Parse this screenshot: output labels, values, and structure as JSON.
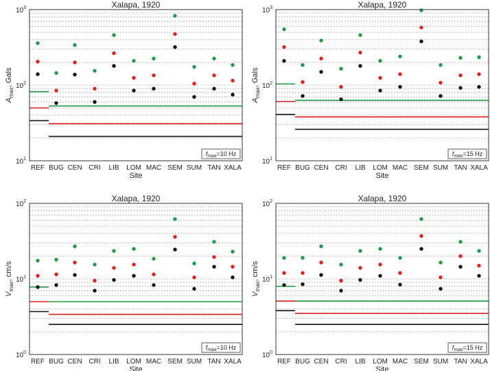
{
  "chart_data": [
    {
      "type": "scatter",
      "title": "Xalapa, 1920",
      "ylabel": "A_max, Gals",
      "ylabel_base": "A",
      "ylabel_sub": "max",
      "ylabel_rest": ", Gals",
      "xlabel": "Site",
      "yscale": "log",
      "ylim": [
        10,
        1000
      ],
      "y_ticks": [
        {
          "value": 10,
          "base": "10",
          "exp": "1"
        },
        {
          "value": 100,
          "base": "10",
          "exp": "2"
        },
        {
          "value": 1000,
          "base": "10",
          "exp": "3"
        }
      ],
      "grid": true,
      "categories": [
        "REF",
        "BUG",
        "CEN",
        "CRI",
        "LIB",
        "LOM",
        "MAC",
        "SEM",
        "SUM",
        "TAN",
        "XALA"
      ],
      "annotation": {
        "base": "f",
        "sub": "max",
        "rest": "=10 Hz"
      },
      "series": [
        {
          "name": "green",
          "color": "#1e9a48",
          "values": [
            360,
            145,
            340,
            155,
            460,
            210,
            225,
            830,
            175,
            225,
            185
          ]
        },
        {
          "name": "red",
          "color": "#e0201e",
          "values": [
            205,
            85,
            200,
            90,
            265,
            125,
            135,
            475,
            105,
            135,
            115
          ]
        },
        {
          "name": "black",
          "color": "#111111",
          "values": [
            140,
            58,
            138,
            60,
            180,
            85,
            90,
            320,
            70,
            90,
            75
          ]
        }
      ],
      "ref_lines": [
        {
          "color": "#1e9a48",
          "ref_value": 82,
          "sites_value": 53
        },
        {
          "color": "#e0201e",
          "ref_value": 50,
          "sites_value": 31
        },
        {
          "color": "#111111",
          "ref_value": 34,
          "sites_value": 21
        }
      ]
    },
    {
      "type": "scatter",
      "title": "Xalapa, 1920",
      "ylabel": "A_max, Gals",
      "ylabel_base": "A",
      "ylabel_sub": "max",
      "ylabel_rest": ", Gals",
      "xlabel": "Site",
      "yscale": "log",
      "ylim": [
        10,
        1000
      ],
      "y_ticks": [
        {
          "value": 10,
          "base": "10",
          "exp": "1"
        },
        {
          "value": 100,
          "base": "10",
          "exp": "2"
        },
        {
          "value": 1000,
          "base": "10",
          "exp": "3"
        }
      ],
      "grid": true,
      "categories": [
        "REF",
        "BUG",
        "CEN",
        "CRI",
        "LIB",
        "LOM",
        "MAC",
        "SEM",
        "SUM",
        "TAN",
        "XALA"
      ],
      "annotation": {
        "base": "f",
        "sub": "max",
        "rest": "=15 Hz"
      },
      "series": [
        {
          "name": "green",
          "color": "#1e9a48",
          "values": [
            550,
            185,
            390,
            165,
            460,
            210,
            240,
            980,
            185,
            230,
            235
          ]
        },
        {
          "name": "red",
          "color": "#e0201e",
          "values": [
            320,
            110,
            225,
            95,
            270,
            125,
            140,
            580,
            108,
            135,
            140
          ]
        },
        {
          "name": "black",
          "color": "#111111",
          "values": [
            210,
            72,
            150,
            65,
            180,
            85,
            95,
            380,
            72,
            92,
            95
          ]
        }
      ],
      "ref_lines": [
        {
          "color": "#1e9a48",
          "ref_value": 104,
          "sites_value": 63
        },
        {
          "color": "#e0201e",
          "ref_value": 61,
          "sites_value": 38
        },
        {
          "color": "#111111",
          "ref_value": 41,
          "sites_value": 26
        }
      ]
    },
    {
      "type": "scatter",
      "title": "Xalapa, 1920",
      "ylabel": "V_max, cm/s",
      "ylabel_base": "V",
      "ylabel_sub": "max",
      "ylabel_rest": ", cm/s",
      "xlabel": "Site",
      "yscale": "log",
      "ylim": [
        1,
        100
      ],
      "y_ticks": [
        {
          "value": 1,
          "base": "10",
          "exp": "0"
        },
        {
          "value": 10,
          "base": "10",
          "exp": "1"
        },
        {
          "value": 100,
          "base": "10",
          "exp": "2"
        }
      ],
      "grid": true,
      "categories": [
        "REF",
        "BUG",
        "CEN",
        "CRI",
        "LIB",
        "LOM",
        "MAC",
        "SEM",
        "SUM",
        "TAN",
        "XALA"
      ],
      "annotation": {
        "base": "f",
        "sub": "max",
        "rest": "=10 Hz"
      },
      "series": [
        {
          "name": "green",
          "color": "#1e9a48",
          "values": [
            17.5,
            18,
            27,
            15.5,
            23.5,
            25,
            18.5,
            62,
            16,
            31,
            23
          ]
        },
        {
          "name": "red",
          "color": "#e0201e",
          "values": [
            11,
            11.5,
            16.5,
            9.5,
            14,
            15.5,
            11.5,
            36,
            10.5,
            19.5,
            14.5
          ]
        },
        {
          "name": "black",
          "color": "#111111",
          "values": [
            7.8,
            8.3,
            11.3,
            7.0,
            9.7,
            11,
            8.3,
            24.5,
            7.4,
            14.5,
            10.5
          ]
        }
      ],
      "ref_lines": [
        {
          "color": "#1e9a48",
          "ref_value": 7.8,
          "sites_value": 5.0
        },
        {
          "color": "#e0201e",
          "ref_value": 5.0,
          "sites_value": 3.4
        },
        {
          "color": "#111111",
          "ref_value": 3.7,
          "sites_value": 2.5
        }
      ]
    },
    {
      "type": "scatter",
      "title": "Xalapa, 1920",
      "ylabel": "V_max, cm/s",
      "ylabel_base": "V",
      "ylabel_sub": "max",
      "ylabel_rest": ", cm/s",
      "xlabel": "Site",
      "yscale": "log",
      "ylim": [
        1,
        100
      ],
      "y_ticks": [
        {
          "value": 1,
          "base": "10",
          "exp": "0"
        },
        {
          "value": 10,
          "base": "10",
          "exp": "1"
        },
        {
          "value": 100,
          "base": "10",
          "exp": "2"
        }
      ],
      "grid": true,
      "categories": [
        "REF",
        "BUG",
        "CEN",
        "CRI",
        "LIB",
        "LOM",
        "MAC",
        "SEM",
        "SUM",
        "TAN",
        "XALA"
      ],
      "annotation": {
        "base": "f",
        "sub": "max",
        "rest": "=15 Hz"
      },
      "series": [
        {
          "name": "green",
          "color": "#1e9a48",
          "values": [
            19,
            19,
            27,
            15.5,
            23.5,
            25,
            19,
            62,
            16.5,
            31,
            23.5
          ]
        },
        {
          "name": "red",
          "color": "#e0201e",
          "values": [
            12,
            12,
            16.5,
            9.5,
            14,
            15.5,
            12,
            37,
            10.5,
            20,
            15
          ]
        },
        {
          "name": "black",
          "color": "#111111",
          "values": [
            8.3,
            8.5,
            11.3,
            7.0,
            9.7,
            11,
            8.4,
            25,
            7.4,
            14.5,
            11
          ]
        }
      ],
      "ref_lines": [
        {
          "color": "#1e9a48",
          "ref_value": 8.0,
          "sites_value": 5.1
        },
        {
          "color": "#e0201e",
          "ref_value": 5.1,
          "sites_value": 3.5
        },
        {
          "color": "#111111",
          "ref_value": 3.8,
          "sites_value": 2.5
        }
      ]
    }
  ]
}
